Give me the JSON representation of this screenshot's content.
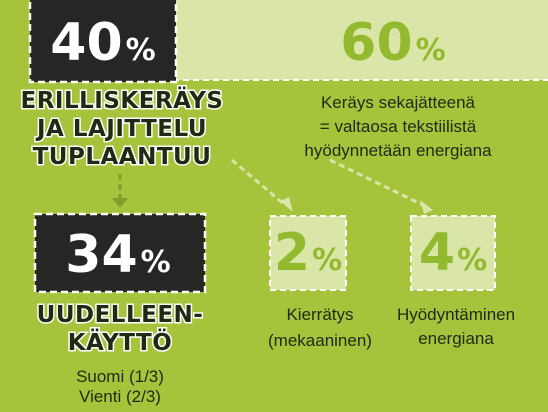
{
  "boxes": [
    {
      "value": "40",
      "unit": "%"
    },
    {
      "value": "60",
      "unit": "%"
    },
    {
      "value": "34",
      "unit": "%"
    },
    {
      "value": "2",
      "unit": "%"
    },
    {
      "value": "4",
      "unit": "%"
    }
  ],
  "left_heading": [
    "ERILLISKERÄYS",
    "JA LAJITTELU",
    "TUPLAANTUU"
  ],
  "right_text": [
    "Keräys sekajätteenä",
    "= valtaosa tekstiilistä",
    "hyödynnetään energiana"
  ],
  "reuse_heading": [
    "UUDELLEEN-",
    "KÄYTTÖ"
  ],
  "reuse_details": [
    "Suomi (1/3)",
    "Vienti (2/3)"
  ],
  "recycling_label": [
    "Kierrätys",
    "(mekaaninen)"
  ],
  "energy_label": [
    "Hyödyntäminen",
    "energiana"
  ]
}
